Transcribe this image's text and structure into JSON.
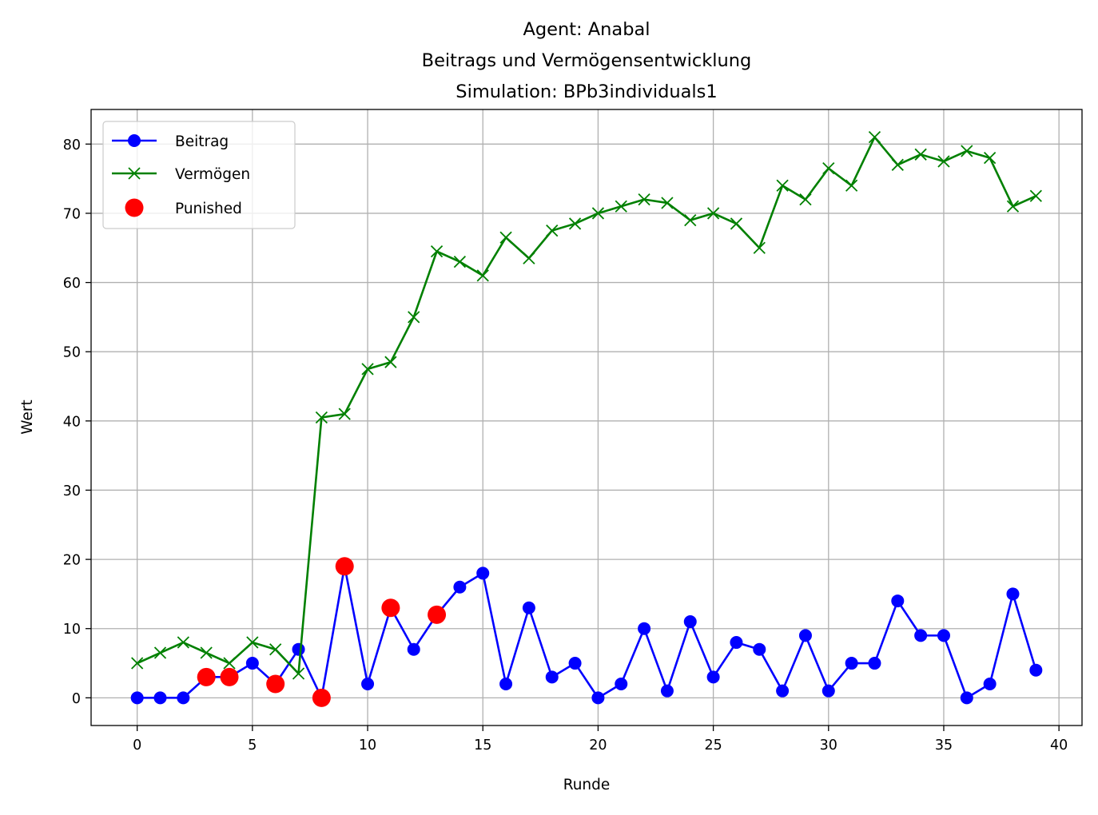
{
  "chart_data": {
    "type": "line",
    "title_lines": [
      "Agent: Anabal",
      "Beitrags und Vermögensentwicklung",
      "Simulation: BPb3individuals1"
    ],
    "xlabel": "Runde",
    "ylabel": "Wert",
    "xlim": [
      -2,
      41
    ],
    "ylim": [
      -4,
      85
    ],
    "xticks": [
      0,
      5,
      10,
      15,
      20,
      25,
      30,
      35,
      40
    ],
    "yticks": [
      0,
      10,
      20,
      30,
      40,
      50,
      60,
      70,
      80
    ],
    "grid": true,
    "legend_position": "top-left",
    "x": [
      0,
      1,
      2,
      3,
      4,
      5,
      6,
      7,
      8,
      9,
      10,
      11,
      12,
      13,
      14,
      15,
      16,
      17,
      18,
      19,
      20,
      21,
      22,
      23,
      24,
      25,
      26,
      27,
      28,
      29,
      30,
      31,
      32,
      33,
      34,
      35,
      36,
      37,
      38,
      39
    ],
    "series": [
      {
        "name": "Beitrag",
        "color": "#0000ff",
        "marker": "circle",
        "values": [
          0,
          0,
          0,
          3,
          3,
          5,
          2,
          7,
          0,
          19,
          2,
          13,
          7,
          12,
          16,
          18,
          2,
          13,
          3,
          5,
          0,
          2,
          10,
          1,
          11,
          3,
          8,
          7,
          1,
          9,
          1,
          5,
          5,
          14,
          9,
          9,
          0,
          2,
          15,
          4
        ]
      },
      {
        "name": "Vermögen",
        "color": "#008000",
        "marker": "x",
        "values": [
          5,
          6.5,
          8,
          6.5,
          5,
          8,
          7,
          3.5,
          40.5,
          41,
          47.5,
          48.5,
          55,
          64.5,
          63,
          61,
          66.5,
          63.5,
          67.5,
          68.5,
          70,
          71,
          72,
          71.5,
          69,
          70,
          68.5,
          65,
          74,
          72,
          76.5,
          74,
          81,
          77,
          78.5,
          77.5,
          79,
          78,
          71,
          72.5
        ]
      },
      {
        "name": "Punished",
        "color": "#ff0000",
        "marker": "big-circle",
        "points": [
          [
            3,
            3
          ],
          [
            4,
            3
          ],
          [
            6,
            2
          ],
          [
            8,
            0
          ],
          [
            9,
            19
          ],
          [
            11,
            13
          ],
          [
            13,
            12
          ]
        ]
      }
    ]
  }
}
